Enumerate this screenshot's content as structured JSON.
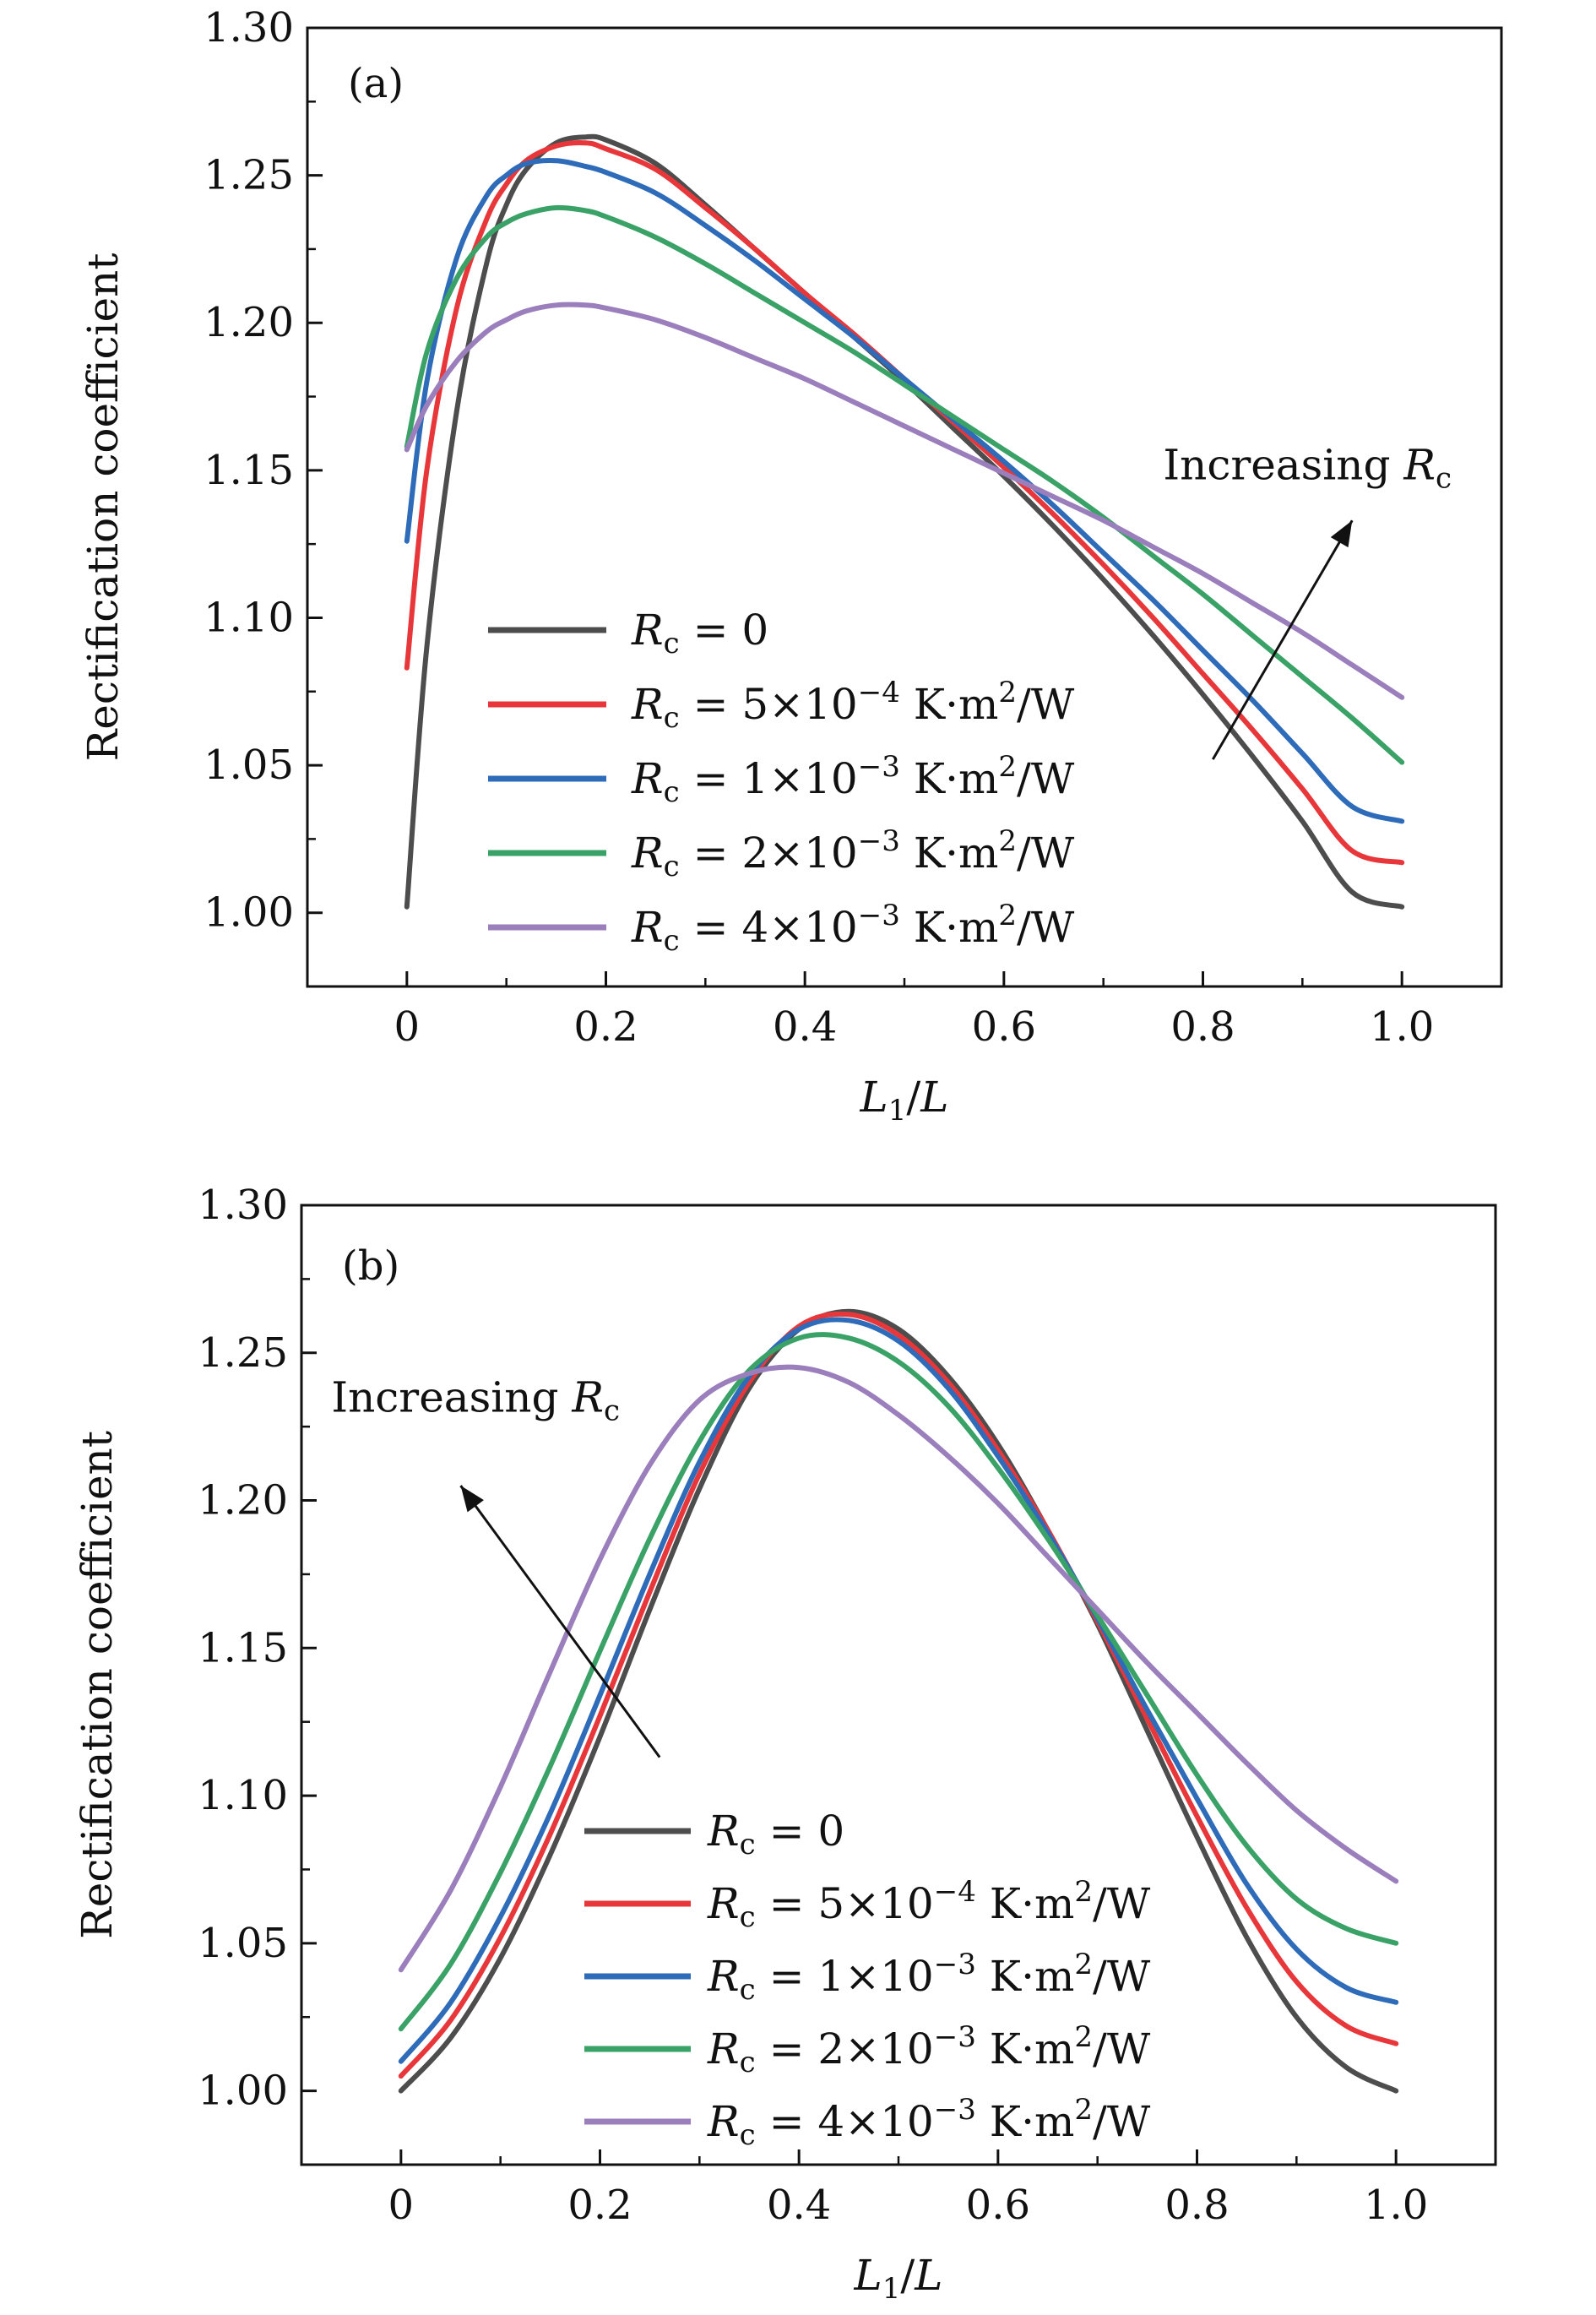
{
  "chart_data": [
    {
      "type": "line",
      "panel_label": "(a)",
      "xlabel": "L1/L",
      "ylabel": "Rectification coefficient",
      "xlim": [
        -0.1,
        1.1
      ],
      "ylim": [
        0.975,
        1.3
      ],
      "xticks": [
        "0",
        "0.2",
        "0.4",
        "0.6",
        "0.8",
        "1.0"
      ],
      "xtick_values": [
        0,
        0.2,
        0.4,
        0.6,
        0.8,
        1.0
      ],
      "yticks": [
        "1.00",
        "1.05",
        "1.10",
        "1.15",
        "1.20",
        "1.25",
        "1.30"
      ],
      "ytick_values": [
        1.0,
        1.05,
        1.1,
        1.15,
        1.2,
        1.25,
        1.3
      ],
      "annotation": {
        "text": "Increasing",
        "var": "R",
        "sub": "c",
        "arrow_from": [
          0.81,
          1.052
        ],
        "arrow_to": [
          0.95,
          1.133
        ],
        "text_at": [
          0.76,
          1.147
        ]
      },
      "legend_position": "lower-left",
      "series": [
        {
          "name": "R_c = 0",
          "legend_value": "= 0",
          "color": "#4d4d4d",
          "x": [
            0,
            0.02,
            0.05,
            0.08,
            0.1,
            0.12,
            0.15,
            0.18,
            0.2,
            0.25,
            0.3,
            0.35,
            0.4,
            0.45,
            0.5,
            0.55,
            0.6,
            0.65,
            0.7,
            0.75,
            0.8,
            0.85,
            0.9,
            0.95,
            1.0
          ],
          "y": [
            1.002,
            1.09,
            1.17,
            1.22,
            1.24,
            1.252,
            1.261,
            1.263,
            1.262,
            1.254,
            1.24,
            1.225,
            1.21,
            1.195,
            1.18,
            1.164,
            1.148,
            1.131,
            1.113,
            1.094,
            1.074,
            1.053,
            1.031,
            1.007,
            1.002
          ]
        },
        {
          "name": "R_c = 5×10^-4 K·m^2/W",
          "legend_value": "= 5×10",
          "exp": "−4",
          "unit": " K·m",
          "unit_exp": "2",
          "unit_tail": "/W",
          "color": "#e8373a",
          "x": [
            0,
            0.02,
            0.05,
            0.08,
            0.1,
            0.12,
            0.15,
            0.18,
            0.2,
            0.25,
            0.3,
            0.35,
            0.4,
            0.45,
            0.5,
            0.55,
            0.6,
            0.65,
            0.7,
            0.75,
            0.8,
            0.85,
            0.9,
            0.95,
            1.0
          ],
          "y": [
            1.083,
            1.15,
            1.205,
            1.235,
            1.247,
            1.255,
            1.26,
            1.261,
            1.259,
            1.252,
            1.239,
            1.225,
            1.21,
            1.196,
            1.181,
            1.166,
            1.151,
            1.135,
            1.118,
            1.1,
            1.081,
            1.062,
            1.042,
            1.021,
            1.017
          ]
        },
        {
          "name": "R_c = 1×10^-3 K·m^2/W",
          "legend_value": "= 1×10",
          "exp": "−3",
          "unit": " K·m",
          "unit_exp": "2",
          "unit_tail": "/W",
          "color": "#2e6bb8",
          "x": [
            0,
            0.02,
            0.05,
            0.08,
            0.1,
            0.12,
            0.15,
            0.18,
            0.2,
            0.25,
            0.3,
            0.35,
            0.4,
            0.45,
            0.5,
            0.55,
            0.6,
            0.65,
            0.7,
            0.75,
            0.8,
            0.85,
            0.9,
            0.95,
            1.0
          ],
          "y": [
            1.126,
            1.18,
            1.222,
            1.243,
            1.25,
            1.254,
            1.255,
            1.253,
            1.251,
            1.244,
            1.233,
            1.221,
            1.208,
            1.195,
            1.181,
            1.167,
            1.153,
            1.138,
            1.122,
            1.106,
            1.089,
            1.072,
            1.054,
            1.036,
            1.031
          ]
        },
        {
          "name": "R_c = 2×10^-3 K·m^2/W",
          "legend_value": "= 2×10",
          "exp": "−3",
          "unit": " K·m",
          "unit_exp": "2",
          "unit_tail": "/W",
          "color": "#3aa267",
          "x": [
            0,
            0.02,
            0.05,
            0.08,
            0.1,
            0.12,
            0.15,
            0.18,
            0.2,
            0.25,
            0.3,
            0.35,
            0.4,
            0.45,
            0.5,
            0.55,
            0.6,
            0.65,
            0.7,
            0.75,
            0.8,
            0.85,
            0.9,
            0.95,
            1.0
          ],
          "y": [
            1.158,
            1.19,
            1.215,
            1.229,
            1.234,
            1.237,
            1.239,
            1.238,
            1.236,
            1.229,
            1.22,
            1.21,
            1.2,
            1.19,
            1.179,
            1.168,
            1.157,
            1.146,
            1.134,
            1.121,
            1.108,
            1.094,
            1.08,
            1.066,
            1.051
          ]
        },
        {
          "name": "R_c = 4×10^-3 K·m^2/W",
          "legend_value": "= 4×10",
          "exp": "−3",
          "unit": " K·m",
          "unit_exp": "2",
          "unit_tail": "/W",
          "color": "#9b7fbd",
          "x": [
            0,
            0.02,
            0.05,
            0.08,
            0.1,
            0.12,
            0.15,
            0.18,
            0.2,
            0.25,
            0.3,
            0.35,
            0.4,
            0.45,
            0.5,
            0.55,
            0.6,
            0.65,
            0.7,
            0.75,
            0.8,
            0.85,
            0.9,
            0.95,
            1.0
          ],
          "y": [
            1.157,
            1.172,
            1.187,
            1.197,
            1.201,
            1.204,
            1.206,
            1.206,
            1.205,
            1.201,
            1.195,
            1.188,
            1.181,
            1.173,
            1.165,
            1.157,
            1.149,
            1.141,
            1.133,
            1.124,
            1.115,
            1.105,
            1.095,
            1.084,
            1.073
          ]
        }
      ]
    },
    {
      "type": "line",
      "panel_label": "(b)",
      "xlabel": "L1/L",
      "ylabel": "Rectification coefficient",
      "xlim": [
        -0.1,
        1.1
      ],
      "ylim": [
        0.975,
        1.3
      ],
      "xticks": [
        "0",
        "0.2",
        "0.4",
        "0.6",
        "0.8",
        "1.0"
      ],
      "xtick_values": [
        0,
        0.2,
        0.4,
        0.6,
        0.8,
        1.0
      ],
      "yticks": [
        "1.00",
        "1.05",
        "1.10",
        "1.15",
        "1.20",
        "1.25",
        "1.30"
      ],
      "ytick_values": [
        1.0,
        1.05,
        1.1,
        1.15,
        1.2,
        1.25,
        1.3
      ],
      "annotation": {
        "text": "Increasing",
        "var": "R",
        "sub": "c",
        "arrow_from": [
          0.26,
          1.113
        ],
        "arrow_to": [
          0.06,
          1.205
        ],
        "text_at": [
          -0.07,
          1.23
        ]
      },
      "legend_position": "lower-center",
      "series": [
        {
          "name": "R_c = 0",
          "legend_value": "= 0",
          "color": "#4d4d4d",
          "x": [
            0,
            0.05,
            0.1,
            0.15,
            0.2,
            0.25,
            0.3,
            0.35,
            0.4,
            0.45,
            0.5,
            0.55,
            0.6,
            0.65,
            0.7,
            0.75,
            0.8,
            0.85,
            0.9,
            0.95,
            1.0
          ],
          "y": [
            1.0,
            1.018,
            1.045,
            1.08,
            1.12,
            1.163,
            1.204,
            1.238,
            1.258,
            1.264,
            1.258,
            1.242,
            1.219,
            1.19,
            1.158,
            1.122,
            1.086,
            1.052,
            1.025,
            1.008,
            1.0
          ]
        },
        {
          "name": "R_c = 5×10^-4 K·m^2/W",
          "legend_value": "= 5×10",
          "exp": "−4",
          "unit": " K·m",
          "unit_exp": "2",
          "unit_tail": "/W",
          "color": "#e8373a",
          "x": [
            0,
            0.05,
            0.1,
            0.15,
            0.2,
            0.25,
            0.3,
            0.35,
            0.4,
            0.45,
            0.5,
            0.55,
            0.6,
            0.65,
            0.7,
            0.75,
            0.8,
            0.85,
            0.9,
            0.95,
            1.0
          ],
          "y": [
            1.005,
            1.024,
            1.052,
            1.087,
            1.127,
            1.169,
            1.209,
            1.24,
            1.259,
            1.263,
            1.256,
            1.24,
            1.217,
            1.19,
            1.159,
            1.126,
            1.093,
            1.062,
            1.037,
            1.022,
            1.016
          ]
        },
        {
          "name": "R_c = 1×10^-3 K·m^2/W",
          "legend_value": "= 1×10",
          "exp": "−3",
          "unit": " K·m",
          "unit_exp": "2",
          "unit_tail": "/W",
          "color": "#2e6bb8",
          "x": [
            0,
            0.05,
            0.1,
            0.15,
            0.2,
            0.25,
            0.3,
            0.35,
            0.4,
            0.45,
            0.5,
            0.55,
            0.6,
            0.65,
            0.7,
            0.75,
            0.8,
            0.85,
            0.9,
            0.95,
            1.0
          ],
          "y": [
            1.01,
            1.03,
            1.059,
            1.094,
            1.134,
            1.175,
            1.213,
            1.242,
            1.258,
            1.261,
            1.254,
            1.238,
            1.215,
            1.189,
            1.16,
            1.129,
            1.099,
            1.07,
            1.048,
            1.035,
            1.03
          ]
        },
        {
          "name": "R_c = 2×10^-3 K·m^2/W",
          "legend_value": "= 2×10",
          "exp": "−3",
          "unit": " K·m",
          "unit_exp": "2",
          "unit_tail": "/W",
          "color": "#3aa267",
          "x": [
            0,
            0.05,
            0.1,
            0.15,
            0.2,
            0.25,
            0.3,
            0.35,
            0.4,
            0.45,
            0.5,
            0.55,
            0.6,
            0.65,
            0.7,
            0.75,
            0.8,
            0.85,
            0.9,
            0.95,
            1.0
          ],
          "y": [
            1.021,
            1.043,
            1.074,
            1.11,
            1.149,
            1.187,
            1.22,
            1.244,
            1.255,
            1.255,
            1.247,
            1.232,
            1.211,
            1.187,
            1.161,
            1.134,
            1.107,
            1.083,
            1.065,
            1.055,
            1.05
          ]
        },
        {
          "name": "R_c = 4×10^-3 K·m^2/W",
          "legend_value": "= 4×10",
          "exp": "−3",
          "unit": " K·m",
          "unit_exp": "2",
          "unit_tail": "/W",
          "color": "#9b7fbd",
          "x": [
            0,
            0.05,
            0.1,
            0.15,
            0.2,
            0.25,
            0.3,
            0.35,
            0.4,
            0.45,
            0.5,
            0.55,
            0.6,
            0.65,
            0.7,
            0.75,
            0.8,
            0.85,
            0.9,
            0.95,
            1.0
          ],
          "y": [
            1.041,
            1.068,
            1.103,
            1.142,
            1.18,
            1.212,
            1.234,
            1.243,
            1.245,
            1.24,
            1.229,
            1.215,
            1.199,
            1.181,
            1.163,
            1.145,
            1.128,
            1.111,
            1.095,
            1.082,
            1.071
          ]
        }
      ]
    }
  ]
}
